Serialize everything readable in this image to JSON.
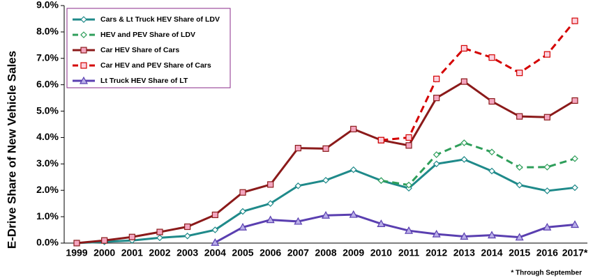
{
  "chart_data": {
    "type": "line",
    "y_label": "E-Drive Share of New Vehicle Sales",
    "footnote": "* Through September",
    "categories": [
      "1999",
      "2000",
      "2001",
      "2002",
      "2003",
      "2004",
      "2005",
      "2006",
      "2007",
      "2008",
      "2009",
      "2010",
      "2011",
      "2012",
      "2013",
      "2014",
      "2015",
      "2016",
      "2017*"
    ],
    "ylim": [
      0,
      9
    ],
    "yticks": [
      {
        "value": 0,
        "label": "0.0%"
      },
      {
        "value": 1,
        "label": "1.0%"
      },
      {
        "value": 2,
        "label": "2.0%"
      },
      {
        "value": 3,
        "label": "3.0%"
      },
      {
        "value": 4,
        "label": "4.0%"
      },
      {
        "value": 5,
        "label": "5.0%"
      },
      {
        "value": 6,
        "label": "6.0%"
      },
      {
        "value": 7,
        "label": "7.0%"
      },
      {
        "value": 8,
        "label": "8.0%"
      },
      {
        "value": 9,
        "label": "9.0%"
      }
    ],
    "legend": "top-left",
    "series": [
      {
        "name": "Cars & Lt Truck HEV Share of LDV",
        "color": "#1f8a8a",
        "dash": false,
        "marker": "diamond",
        "marker_fill": "#ffffff",
        "values": [
          0,
          0.05,
          0.1,
          0.2,
          0.27,
          0.5,
          1.2,
          1.5,
          2.17,
          2.38,
          2.78,
          2.37,
          2.08,
          3.0,
          3.17,
          2.73,
          2.2,
          1.98,
          2.1
        ]
      },
      {
        "name": "HEV and PEV Share of LDV",
        "color": "#2e9e5a",
        "dash": true,
        "marker": "diamond",
        "marker_fill": "#ffffff",
        "values": [
          null,
          null,
          null,
          null,
          null,
          null,
          null,
          null,
          null,
          null,
          null,
          2.37,
          2.2,
          3.35,
          3.8,
          3.45,
          2.87,
          2.88,
          3.2
        ]
      },
      {
        "name": "Car HEV Share of Cars",
        "color": "#8b1a1a",
        "dash": false,
        "marker": "square",
        "marker_fill": "#f4a6c0",
        "values": [
          0,
          0.1,
          0.23,
          0.42,
          0.62,
          1.07,
          1.92,
          2.22,
          3.6,
          3.58,
          4.32,
          3.9,
          3.7,
          5.5,
          6.12,
          5.37,
          4.8,
          4.77,
          5.4
        ]
      },
      {
        "name": "Car HEV and PEV Share of Cars",
        "color": "#d40000",
        "dash": true,
        "marker": "square",
        "marker_fill": "#fbd3e0",
        "values": [
          null,
          null,
          null,
          null,
          null,
          null,
          null,
          null,
          null,
          null,
          null,
          3.9,
          4.0,
          6.22,
          7.38,
          7.03,
          6.45,
          7.15,
          8.42
        ]
      },
      {
        "name": "Lt Truck HEV Share of LT",
        "color": "#5a3fb0",
        "dash": false,
        "marker": "triangle",
        "marker_fill": "#b9aee8",
        "values": [
          null,
          null,
          null,
          null,
          null,
          0.02,
          0.6,
          0.88,
          0.82,
          1.05,
          1.08,
          0.73,
          0.47,
          0.34,
          0.25,
          0.3,
          0.22,
          0.6,
          0.7
        ]
      }
    ]
  }
}
